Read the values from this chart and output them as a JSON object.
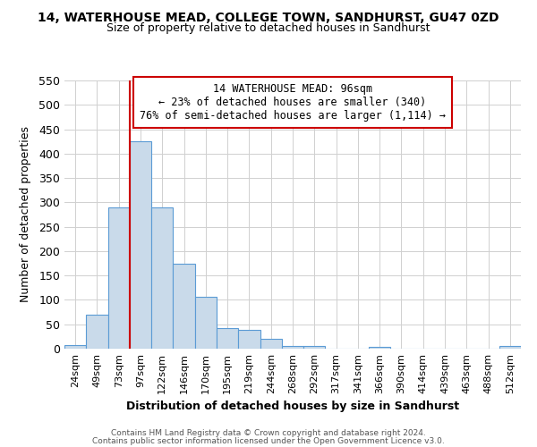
{
  "title": "14, WATERHOUSE MEAD, COLLEGE TOWN, SANDHURST, GU47 0ZD",
  "subtitle": "Size of property relative to detached houses in Sandhurst",
  "xlabel": "Distribution of detached houses by size in Sandhurst",
  "ylabel": "Number of detached properties",
  "bar_color": "#c9daea",
  "bar_edge_color": "#5b9bd5",
  "categories": [
    "24sqm",
    "49sqm",
    "73sqm",
    "97sqm",
    "122sqm",
    "146sqm",
    "170sqm",
    "195sqm",
    "219sqm",
    "244sqm",
    "268sqm",
    "292sqm",
    "317sqm",
    "341sqm",
    "366sqm",
    "390sqm",
    "414sqm",
    "439sqm",
    "463sqm",
    "488sqm",
    "512sqm"
  ],
  "values": [
    8,
    70,
    290,
    425,
    290,
    175,
    107,
    43,
    38,
    20,
    5,
    5,
    0,
    0,
    3,
    0,
    0,
    0,
    0,
    0,
    5
  ],
  "vline_x_index": 3,
  "vline_color": "#cc0000",
  "annotation_title": "14 WATERHOUSE MEAD: 96sqm",
  "annotation_line1": "← 23% of detached houses are smaller (340)",
  "annotation_line2": "76% of semi-detached houses are larger (1,114) →",
  "annotation_box_color": "#ffffff",
  "annotation_box_edge": "#cc0000",
  "ylim": [
    0,
    550
  ],
  "yticks": [
    0,
    50,
    100,
    150,
    200,
    250,
    300,
    350,
    400,
    450,
    500,
    550
  ],
  "footer1": "Contains HM Land Registry data © Crown copyright and database right 2024.",
  "footer2": "Contains public sector information licensed under the Open Government Licence v3.0.",
  "background_color": "#ffffff",
  "grid_color": "#d0d0d0",
  "title_fontsize": 10,
  "subtitle_fontsize": 9,
  "xlabel_fontsize": 9,
  "ylabel_fontsize": 9,
  "footer_fontsize": 6.5
}
